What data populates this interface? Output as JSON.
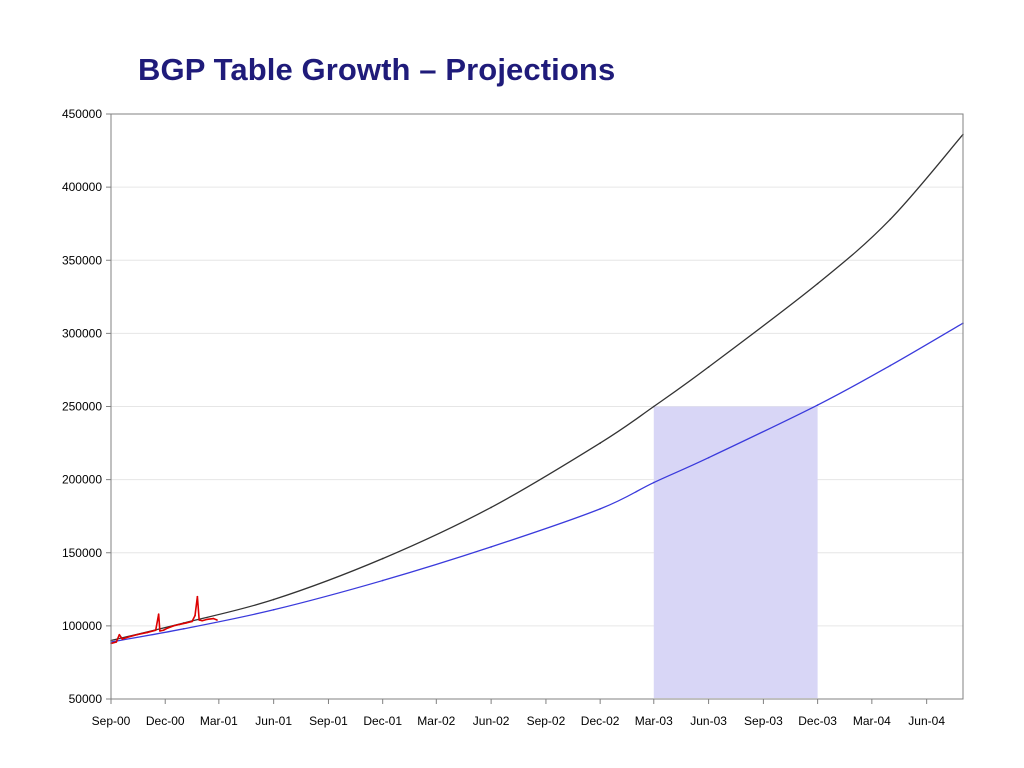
{
  "colors": {
    "title": "#1f1b7a",
    "series_high": "#333333",
    "series_low": "#3a3adc",
    "series_observed": "#dd0000",
    "highlight_band": "#d8d6f6",
    "grid": "#e6e6e6"
  },
  "chart_data": {
    "type": "line",
    "title": "BGP Table Growth – Projections",
    "xlabel": "",
    "ylabel": "",
    "x_axis": {
      "tick_labels": [
        "Sep-00",
        "Dec-00",
        "Mar-01",
        "Jun-01",
        "Sep-01",
        "Dec-01",
        "Mar-02",
        "Jun-02",
        "Sep-02",
        "Dec-02",
        "Mar-03",
        "Jun-03",
        "Sep-03",
        "Dec-03",
        "Mar-04",
        "Jun-04"
      ],
      "range": [
        "2000-09-01",
        "2004-08-01"
      ]
    },
    "y_axis": {
      "range": [
        50000,
        450000
      ],
      "ticks": [
        50000,
        100000,
        150000,
        200000,
        250000,
        300000,
        350000,
        400000,
        450000
      ]
    },
    "grid": true,
    "legend": "none",
    "highlight_band": {
      "x_range": [
        "2003-03-01",
        "2003-12-01"
      ],
      "y_range": [
        50000,
        250000
      ]
    },
    "series": [
      {
        "role": "projection-high",
        "color": "#333333",
        "x": [
          "2000-09-01",
          "2001-01-01",
          "2001-06-01",
          "2001-12-01",
          "2002-06-01",
          "2002-12-01",
          "2003-03-01",
          "2003-06-01",
          "2003-12-01",
          "2004-04-01",
          "2004-08-01"
        ],
        "y": [
          90000,
          102000,
          118000,
          146000,
          181000,
          225000,
          250000,
          277000,
          334000,
          378000,
          436000
        ]
      },
      {
        "role": "projection-low",
        "color": "#3a3adc",
        "x": [
          "2000-09-01",
          "2001-01-01",
          "2001-06-01",
          "2001-12-01",
          "2002-06-01",
          "2002-12-01",
          "2003-03-01",
          "2003-06-01",
          "2003-12-01",
          "2004-04-01",
          "2004-08-01"
        ],
        "y": [
          89000,
          98000,
          111000,
          131000,
          154000,
          180000,
          198000,
          215000,
          251000,
          278000,
          307000
        ]
      },
      {
        "role": "observed",
        "color": "#dd0000",
        "x": [
          "2000-09-01",
          "2000-09-10",
          "2000-09-15",
          "2000-09-20",
          "2000-10-01",
          "2000-10-15",
          "2000-11-01",
          "2000-11-15",
          "2000-11-20",
          "2000-11-22",
          "2000-11-28",
          "2000-12-05",
          "2000-12-15",
          "2000-12-25",
          "2001-01-05",
          "2001-01-15",
          "2001-01-20",
          "2001-01-24",
          "2001-01-27",
          "2001-02-01",
          "2001-02-10",
          "2001-02-20",
          "2001-02-26"
        ],
        "y": [
          88000,
          89000,
          94000,
          91000,
          92500,
          94000,
          95500,
          97000,
          108000,
          96500,
          97000,
          98500,
          100000,
          101000,
          102000,
          103000,
          107000,
          120000,
          104000,
          103500,
          104500,
          105000,
          104000
        ]
      }
    ]
  }
}
